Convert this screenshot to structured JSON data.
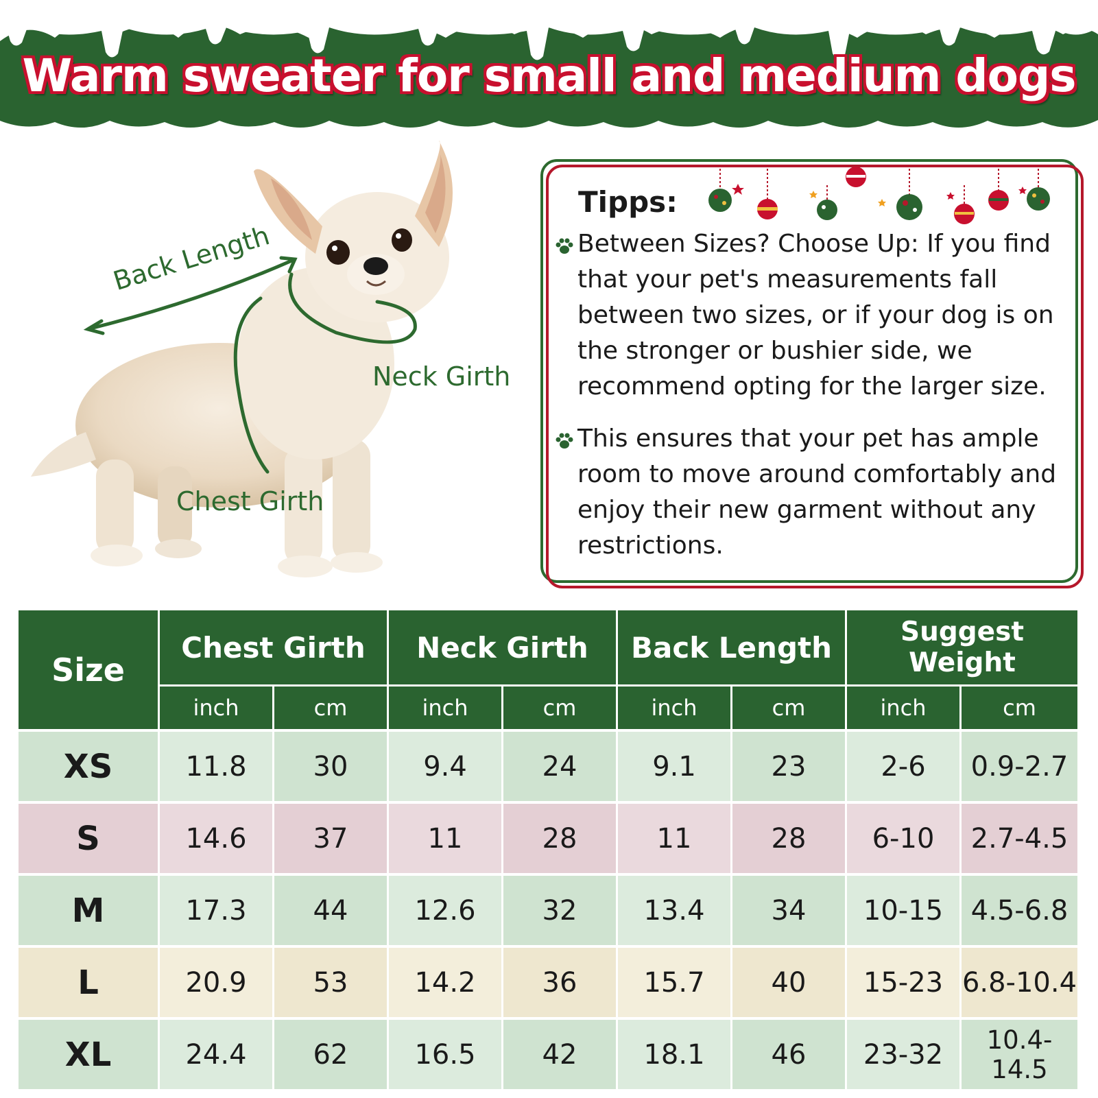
{
  "banner": {
    "title": "Warm sweater for small and medium dogs",
    "colors": {
      "green": "#2a6330",
      "snow": "#ffffff",
      "title_outline": "#c8102e"
    }
  },
  "dog_diagram": {
    "labels": {
      "back_length": "Back Length",
      "neck_girth": "Neck Girth",
      "chest_girth": "Chest Girth"
    },
    "line_color": "#2d6a2f"
  },
  "tips": {
    "title": "Tipps:",
    "items": [
      "Between Sizes? Choose Up: If you find that your pet's measurements fall between two sizes, or if your dog is on the stronger or bushier side, we recommend opting for the larger size.",
      "This ensures that your pet has ample room to move around comfortably and enjoy their new garment without any restrictions."
    ],
    "icon": "paw-icon",
    "decoration": "christmas-ornaments"
  },
  "size_table": {
    "size_header": "Size",
    "groups": [
      "Chest Girth",
      "Neck Girth",
      "Back Length",
      "Suggest Weight"
    ],
    "sub_headers": [
      "inch",
      "cm",
      "inch",
      "cm",
      "inch",
      "cm",
      "inch",
      "cm"
    ],
    "rows": [
      {
        "size": "XS",
        "values": [
          "11.8",
          "30",
          "9.4",
          "24",
          "9.1",
          "23",
          "2-6",
          "0.9-2.7"
        ]
      },
      {
        "size": "S",
        "values": [
          "14.6",
          "37",
          "11",
          "28",
          "11",
          "28",
          "6-10",
          "2.7-4.5"
        ]
      },
      {
        "size": "M",
        "values": [
          "17.3",
          "44",
          "12.6",
          "32",
          "13.4",
          "34",
          "10-15",
          "4.5-6.8"
        ]
      },
      {
        "size": "L",
        "values": [
          "20.9",
          "53",
          "14.2",
          "36",
          "15.7",
          "40",
          "15-23",
          "6.8-10.4"
        ]
      },
      {
        "size": "XL",
        "values": [
          "24.4",
          "62",
          "16.5",
          "42",
          "18.1",
          "46",
          "23-32",
          "10.4-14.5"
        ]
      }
    ],
    "row_colors": [
      "#cfe3d0",
      "#e4cfd4",
      "#cfe3d0",
      "#eee7cf",
      "#cfe3d0"
    ]
  }
}
